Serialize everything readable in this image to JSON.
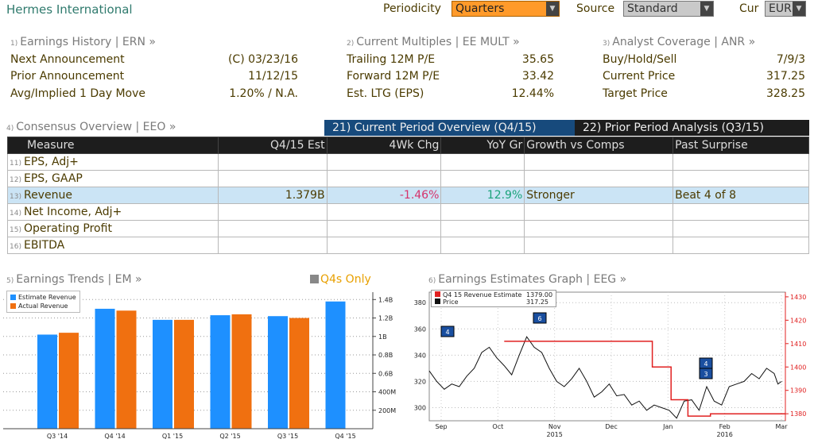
{
  "header": {
    "title": "Hermes International",
    "periodicity_label": "Periodicity",
    "periodicity_value": "Quarters",
    "source_label": "Source",
    "source_value": "Standard",
    "cur_label": "Cur",
    "cur_value": "EUR"
  },
  "earnings_history": {
    "num": "1)",
    "title": "Earnings History | ERN »",
    "rows": [
      {
        "label": "Next Announcement",
        "value": "(C)  03/23/16"
      },
      {
        "label": "Prior Announcement",
        "value": "11/12/15"
      },
      {
        "label": "Avg/Implied 1 Day Move",
        "value": "1.20% / N.A."
      }
    ]
  },
  "current_multiples": {
    "num": "2)",
    "title": "Current Multiples | EE MULT »",
    "rows": [
      {
        "label": "Trailing 12M P/E",
        "value": "35.65"
      },
      {
        "label": "Forward 12M P/E",
        "value": "33.42"
      },
      {
        "label": "Est. LTG (EPS)",
        "value": "12.44%"
      }
    ]
  },
  "analyst_coverage": {
    "num": "3)",
    "title": "Analyst Coverage | ANR »",
    "rows": [
      {
        "label": "Buy/Hold/Sell",
        "value": "7/9/3"
      },
      {
        "label": "Current Price",
        "value": "317.25"
      },
      {
        "label": "Target Price",
        "value": "328.25"
      }
    ]
  },
  "consensus": {
    "num": "4)",
    "title": "Consensus Overview | EEO »",
    "tab_current": "21) Current Period Overview (Q4/15)",
    "tab_prior": "22) Prior Period Analysis (Q3/15)",
    "columns": [
      "Measure",
      "Q4/15 Est",
      "4Wk Chg",
      "YoY Gr",
      "Growth vs Comps",
      "Past Surprise"
    ],
    "rows": [
      {
        "num": "11)",
        "measure": "EPS, Adj+",
        "est": "",
        "chg": "",
        "yoy": "",
        "comps": "",
        "surprise": ""
      },
      {
        "num": "12)",
        "measure": "EPS, GAAP",
        "est": "",
        "chg": "",
        "yoy": "",
        "comps": "",
        "surprise": ""
      },
      {
        "num": "13)",
        "measure": "Revenue",
        "est": "1.379B",
        "chg": "-1.46%",
        "yoy": "12.9%",
        "comps": "Stronger",
        "surprise": "Beat 4 of 8"
      },
      {
        "num": "14)",
        "measure": "Net Income, Adj+",
        "est": "",
        "chg": "",
        "yoy": "",
        "comps": "",
        "surprise": ""
      },
      {
        "num": "15)",
        "measure": "Operating Profit",
        "est": "",
        "chg": "",
        "yoy": "",
        "comps": "",
        "surprise": ""
      },
      {
        "num": "16)",
        "measure": "EBITDA",
        "est": "",
        "chg": "",
        "yoy": "",
        "comps": "",
        "surprise": ""
      }
    ],
    "colors": {
      "negative": "#d6336c",
      "positive": "#1aa37a",
      "selected_row": "#cbe4f5"
    }
  },
  "earnings_trends": {
    "num": "5)",
    "title": "Earnings Trends | EM »",
    "q4s_only": "Q4s Only",
    "legend": [
      {
        "name": "Estimate Revenue",
        "color": "#1e90ff"
      },
      {
        "name": "Actual Revenue",
        "color": "#f07010"
      }
    ]
  },
  "earnings_estimates": {
    "num": "6)",
    "title": "Earnings Estimates Graph | EEG »",
    "legend": [
      {
        "name": "Q4 15 Revenue Estimate",
        "value": "1379.00",
        "color": "#e02020"
      },
      {
        "name": "Price",
        "value": "317.25",
        "color": "#111111"
      }
    ],
    "markers": [
      "4",
      "6",
      "4",
      "3"
    ]
  },
  "chart_data": [
    {
      "type": "bar",
      "categories": [
        "Q3 '14",
        "Q4 '14",
        "Q1 '15",
        "Q2 '15",
        "Q3 '15",
        "Q4 '15"
      ],
      "series": [
        {
          "name": "Estimate Revenue",
          "values": [
            1.02,
            1.3,
            1.18,
            1.23,
            1.22,
            1.379
          ]
        },
        {
          "name": "Actual Revenue",
          "values": [
            1.04,
            1.28,
            1.18,
            1.24,
            1.2,
            null
          ]
        }
      ],
      "y_ticks": [
        "200M",
        "400M",
        "0.6B",
        "0.8B",
        "1B",
        "1.2B",
        "1.4B"
      ],
      "y_tick_values": [
        0.2,
        0.4,
        0.6,
        0.8,
        1.0,
        1.2,
        1.4
      ],
      "ylim": [
        0,
        1.48
      ],
      "unit": "B EUR",
      "axis_side": "right",
      "grid": true,
      "legend_position": "top-left"
    },
    {
      "type": "line",
      "x_labels": [
        "Sep",
        "Oct",
        "Nov",
        "Dec",
        "Jan",
        "Feb",
        "Mar"
      ],
      "year_labels": [
        {
          "at": "Nov",
          "label": "2015"
        },
        {
          "at": "Feb",
          "label": "2016"
        }
      ],
      "x_range": [
        0,
        190
      ],
      "left_axis": {
        "ticks": [
          300,
          320,
          340,
          360,
          380
        ],
        "ylim": [
          290,
          388
        ]
      },
      "right_axis": {
        "ticks": [
          1380,
          1390,
          1400,
          1410,
          1420,
          1430
        ],
        "ylim": [
          1377,
          1432
        ]
      },
      "series": [
        {
          "name": "Price",
          "axis": "left",
          "x": [
            0,
            4,
            8,
            12,
            16,
            20,
            24,
            28,
            32,
            36,
            40,
            44,
            48,
            52,
            56,
            60,
            64,
            68,
            72,
            76,
            80,
            84,
            88,
            92,
            96,
            100,
            104,
            108,
            112,
            116,
            120,
            124,
            128,
            132,
            136,
            140,
            144,
            148,
            152,
            156,
            160,
            164,
            168,
            172,
            176,
            180,
            184,
            186,
            188
          ],
          "values": [
            328,
            320,
            314,
            318,
            316,
            324,
            330,
            342,
            346,
            338,
            332,
            325,
            340,
            354,
            346,
            342,
            330,
            320,
            316,
            322,
            330,
            320,
            308,
            312,
            318,
            309,
            310,
            302,
            305,
            298,
            302,
            300,
            298,
            292,
            305,
            306,
            298,
            316,
            305,
            302,
            316,
            318,
            320,
            326,
            322,
            330,
            326,
            318,
            320
          ]
        },
        {
          "name": "Q4 15 Revenue Estimate",
          "axis": "right",
          "x": [
            40,
            92,
            92,
            119,
            119,
            129,
            129,
            138,
            138,
            141,
            141,
            150,
            150,
            190
          ],
          "values": [
            1411,
            1411,
            1411,
            1411,
            1400,
            1400,
            1386,
            1386,
            1379,
            1379,
            1379,
            1379,
            1380,
            1380
          ]
        }
      ],
      "grid": true,
      "legend_position": "top-left"
    }
  ]
}
